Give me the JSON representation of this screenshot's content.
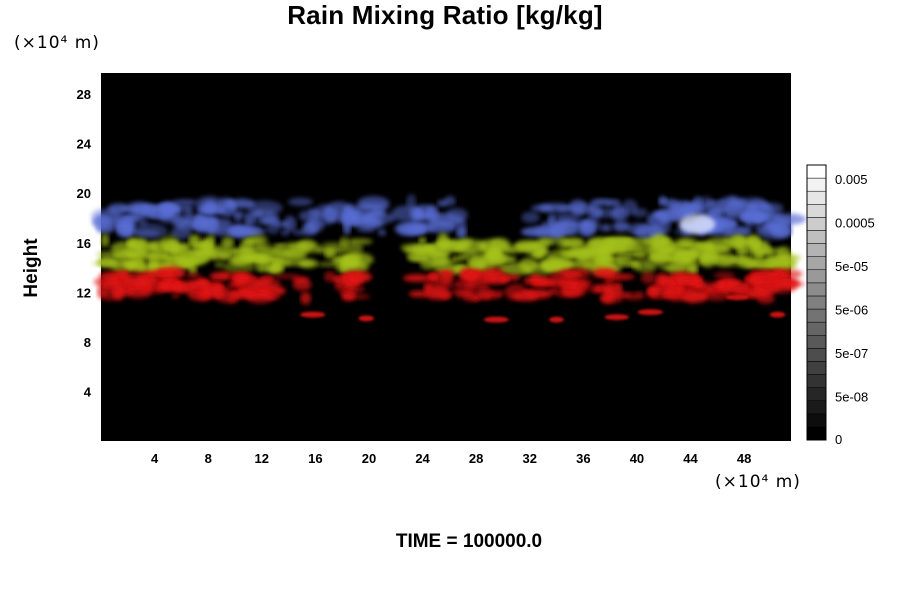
{
  "chart_data": {
    "type": "heatmap",
    "title": "Rain Mixing Ratio [kg/kg]",
    "ylabel": "Height",
    "y_unit": "(×10⁴ m)",
    "x_unit": "(×10⁴ m)",
    "time_label": "TIME = 100000.0",
    "xlim": [
      0,
      51.5
    ],
    "ylim": [
      0,
      29.7
    ],
    "x_ticks": [
      4,
      8,
      12,
      16,
      20,
      24,
      28,
      32,
      36,
      40,
      44,
      48
    ],
    "y_ticks": [
      4,
      8,
      12,
      16,
      20,
      24,
      28
    ],
    "background": "#000000",
    "layer_colors": {
      "upper": "#5a6ed6",
      "middle": "#a6c21a",
      "lower": "#e01414"
    },
    "colorbar": {
      "labels": [
        "0.005",
        "0.0005",
        "5e-05",
        "5e-06",
        "5e-07",
        "5e-08",
        "0"
      ],
      "levels": 21,
      "color_from": "#000000",
      "color_to": "#ffffff"
    }
  }
}
